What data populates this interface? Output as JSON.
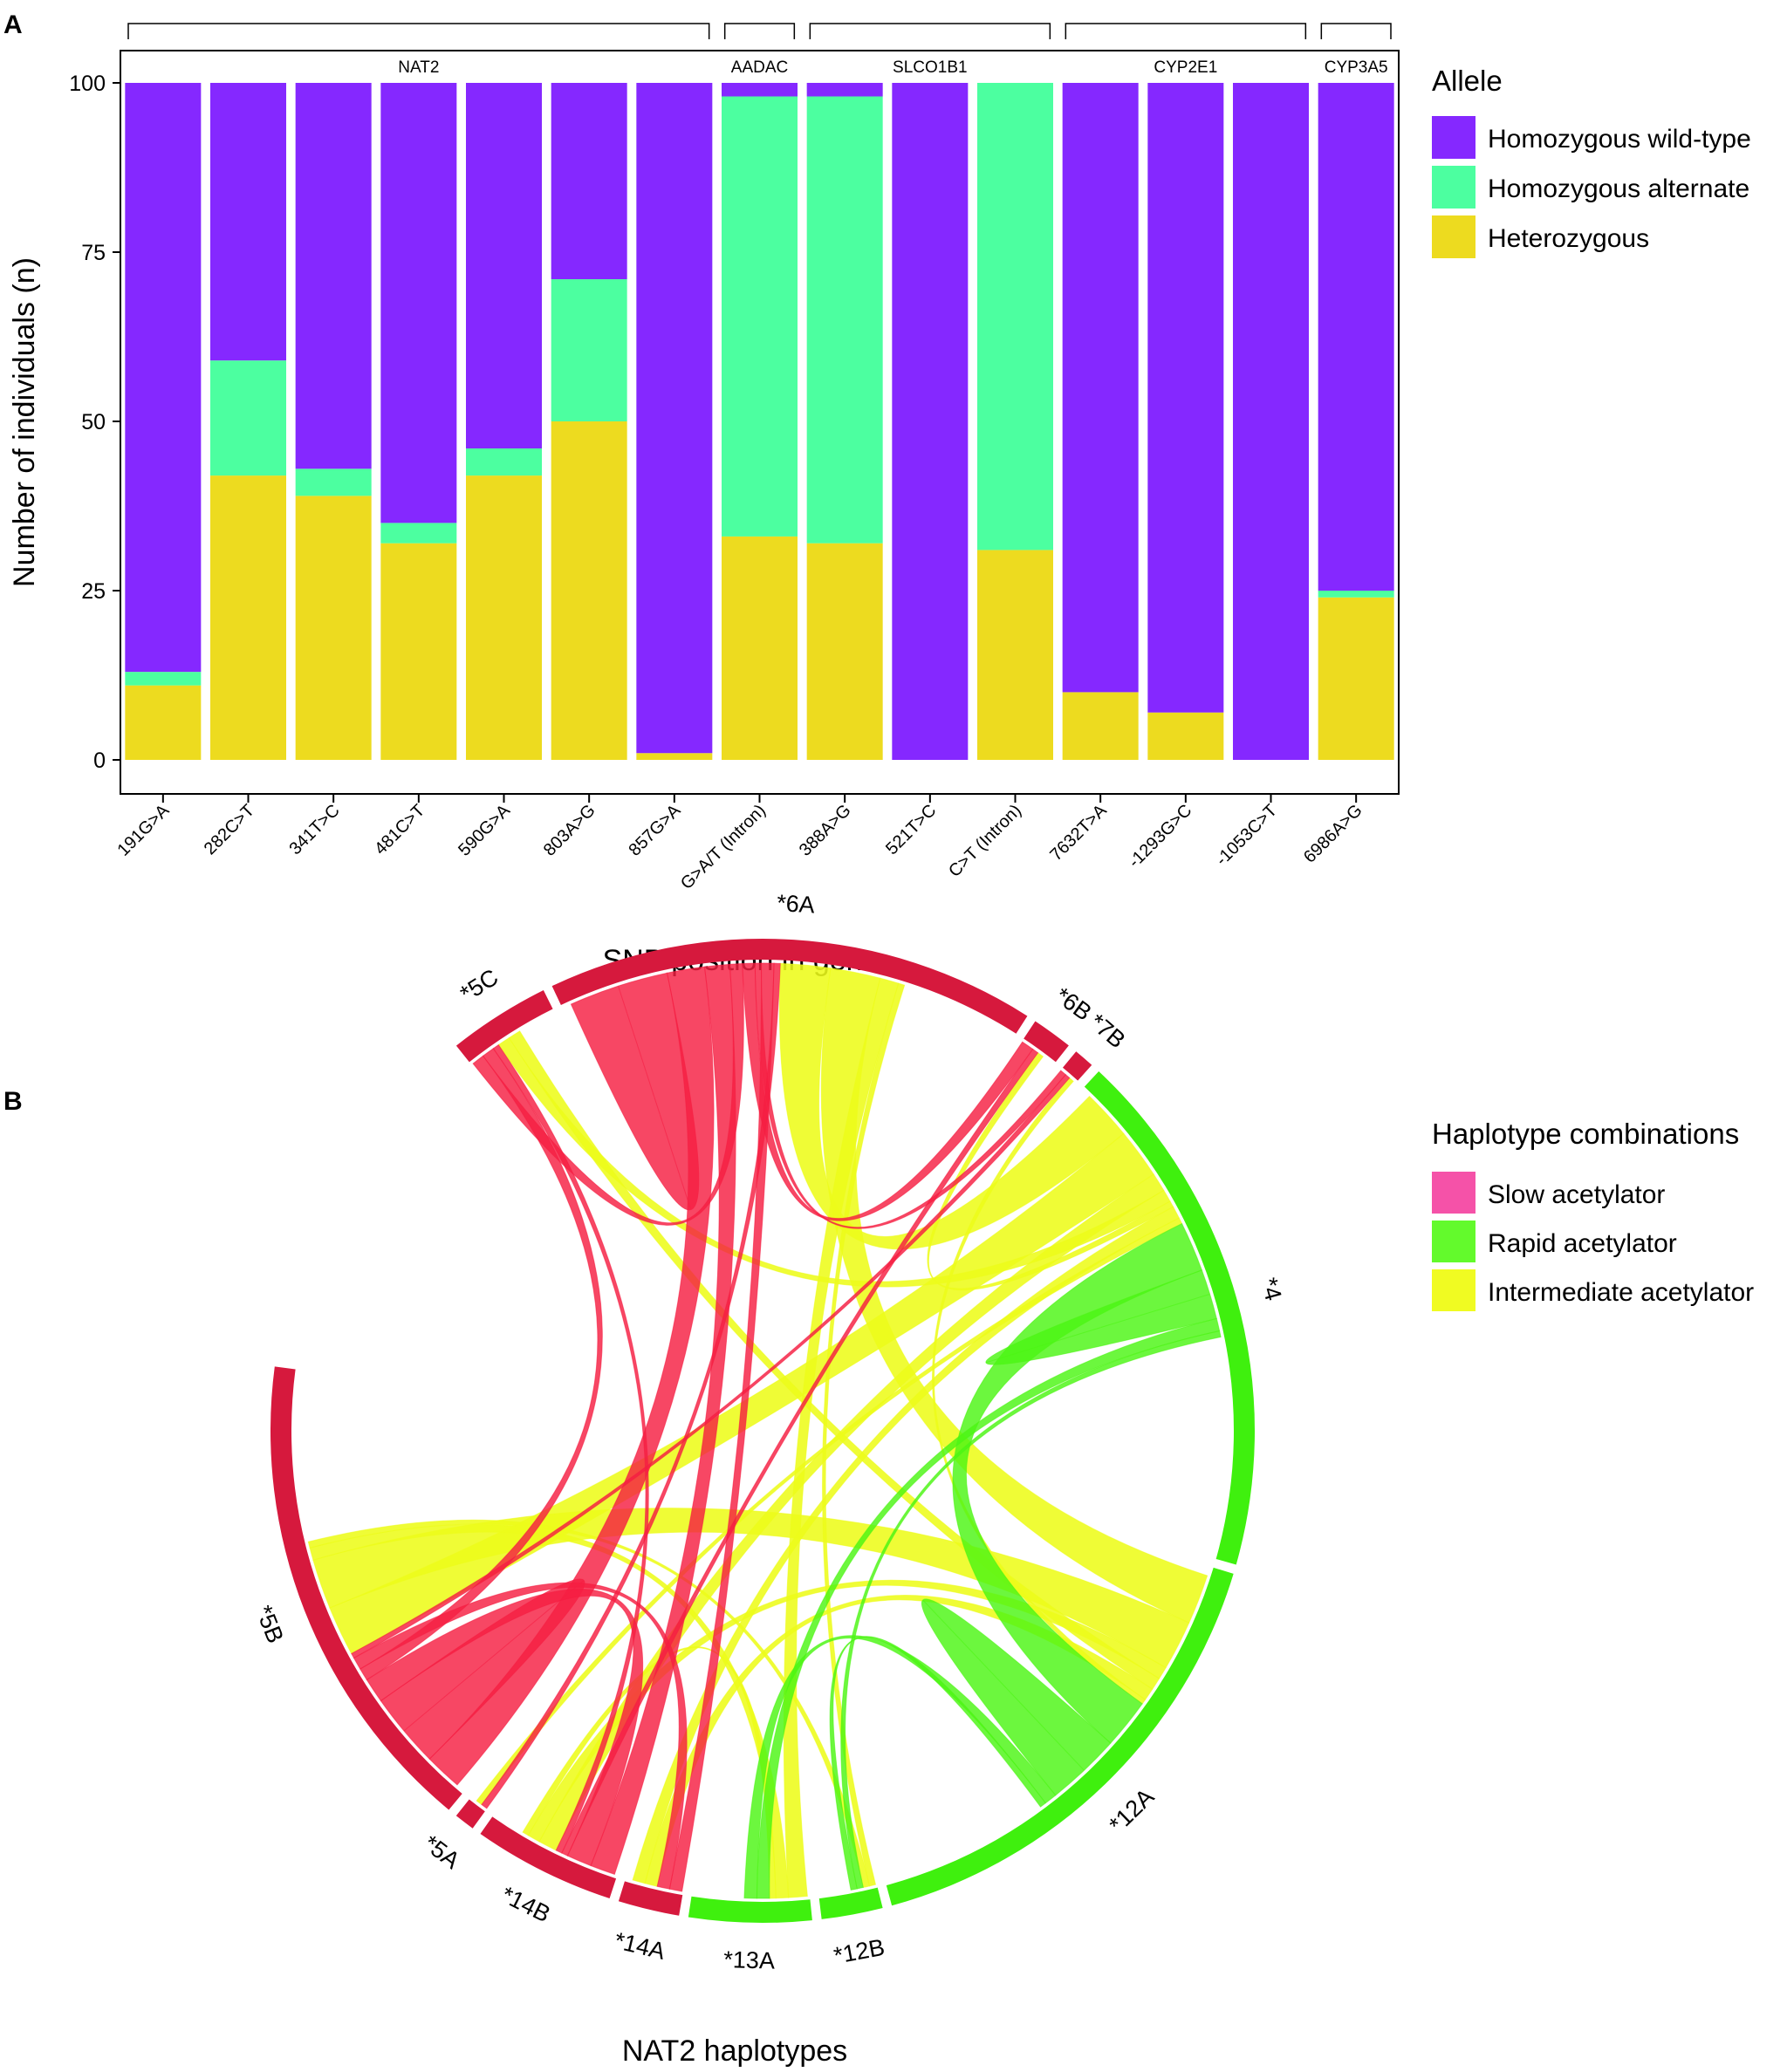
{
  "chart_data": [
    {
      "type": "bar",
      "stacked": true,
      "panel_label": "A",
      "title": "",
      "xlabel": "SNP position in gene",
      "ylabel": "Number of individuals (n)",
      "ylim": [
        0,
        100
      ],
      "yticks": [
        0,
        25,
        50,
        75,
        100
      ],
      "categories": [
        "191G>A",
        "282C>T",
        "341T>C",
        "481C>T",
        "590G>A",
        "803A>G",
        "857G>A",
        "G>A/T (Intron)",
        "388A>G",
        "521T>C",
        "C>T (Intron)",
        "7632T>A",
        "-1293G>C",
        "-1053C>T",
        "6986A>G"
      ],
      "genes": [
        {
          "name": "NAT2",
          "from": 0,
          "to": 6
        },
        {
          "name": "AADAC",
          "from": 7,
          "to": 7
        },
        {
          "name": "SLCO1B1",
          "from": 8,
          "to": 10
        },
        {
          "name": "CYP2E1",
          "from": 11,
          "to": 13
        },
        {
          "name": "CYP3A5",
          "from": 14,
          "to": 14
        }
      ],
      "legend_title": "Allele",
      "legend_position": "right",
      "series": [
        {
          "name": "Heterozygous",
          "color": "#EDDB1F",
          "values": [
            11,
            42,
            39,
            32,
            42,
            50,
            1,
            33,
            32,
            0,
            31,
            10,
            7,
            0,
            24
          ]
        },
        {
          "name": "Homozygous alternate",
          "color": "#4CFFA0",
          "values": [
            2,
            17,
            4,
            3,
            4,
            21,
            0,
            65,
            66,
            0,
            69,
            0,
            0,
            0,
            1
          ]
        },
        {
          "name": "Homozygous wild-type",
          "color": "#8528FF",
          "values": [
            87,
            41,
            57,
            65,
            54,
            29,
            99,
            2,
            2,
            100,
            0,
            90,
            93,
            100,
            75
          ]
        }
      ],
      "legend_items": [
        {
          "label": "Homozygous wild-type",
          "color": "#8528FF"
        },
        {
          "label": "Homozygous alternate",
          "color": "#4CFFA0"
        },
        {
          "label": "Heterozygous",
          "color": "#EDDB1F"
        }
      ]
    },
    {
      "type": "chord",
      "panel_label": "B",
      "title": "NAT2 haplotypes",
      "legend_title": "Haplotype combinations",
      "legend_items": [
        {
          "label": "Slow acetylator",
          "color": "#F552A8"
        },
        {
          "label": "Rapid acetylator",
          "color": "#63FA2C"
        },
        {
          "label": "Intermediate acetylator",
          "color": "#F0FB22"
        }
      ],
      "colors": {
        "slow": "#F51E42",
        "rapid": "#4CF514",
        "intermediate": "#EDFC1A",
        "slow_arc": "#D6193D",
        "rapid_arc": "#3FF00E"
      },
      "sectors": [
        {
          "name": "*5C",
          "group": "slow",
          "size": 5
        },
        {
          "name": "*6A",
          "group": "slow",
          "size": 24
        },
        {
          "name": "*6B",
          "group": "slow",
          "size": 2
        },
        {
          "name": "*7B",
          "group": "slow",
          "size": 1
        },
        {
          "name": "*4",
          "group": "rapid",
          "size": 26
        },
        {
          "name": "*12A",
          "group": "rapid",
          "size": 24
        },
        {
          "name": "*12B",
          "group": "rapid",
          "size": 3
        },
        {
          "name": "*13A",
          "group": "rapid",
          "size": 6
        },
        {
          "name": "*14A",
          "group": "slow",
          "size": 3
        },
        {
          "name": "*14B",
          "group": "slow",
          "size": 7
        },
        {
          "name": "*5A",
          "group": "slow",
          "size": 1
        },
        {
          "name": "*5B",
          "group": "slow",
          "size": 24
        }
      ],
      "links": [
        {
          "a": "*6A",
          "b": "*6A",
          "w": 4,
          "type": "slow"
        },
        {
          "a": "*6A",
          "b": "*5B",
          "w": 3,
          "type": "slow"
        },
        {
          "a": "*5B",
          "b": "*5B",
          "w": 3,
          "type": "slow"
        },
        {
          "a": "*6A",
          "b": "*14B",
          "w": 2,
          "type": "slow"
        },
        {
          "a": "*5B",
          "b": "*14B",
          "w": 2,
          "type": "slow"
        },
        {
          "a": "*5C",
          "b": "*6A",
          "w": 1,
          "type": "slow"
        },
        {
          "a": "*5C",
          "b": "*5B",
          "w": 1,
          "type": "slow"
        },
        {
          "a": "*6A",
          "b": "*6B",
          "w": 1,
          "type": "slow"
        },
        {
          "a": "*6A",
          "b": "*7B",
          "w": 0.5,
          "type": "slow"
        },
        {
          "a": "*6A",
          "b": "*14A",
          "w": 1,
          "type": "slow"
        },
        {
          "a": "*5B",
          "b": "*14A",
          "w": 1,
          "type": "slow"
        },
        {
          "a": "*5A",
          "b": "*6A",
          "w": 0.5,
          "type": "slow"
        },
        {
          "a": "*6B",
          "b": "*14B",
          "w": 0.5,
          "type": "slow"
        },
        {
          "a": "*5C",
          "b": "*14B",
          "w": 0.5,
          "type": "slow"
        },
        {
          "a": "*5B",
          "b": "*7B",
          "w": 0.4,
          "type": "slow"
        },
        {
          "a": "*6A",
          "b": "*4",
          "w": 4,
          "type": "intermediate"
        },
        {
          "a": "*6A",
          "b": "*12A",
          "w": 4,
          "type": "intermediate"
        },
        {
          "a": "*5B",
          "b": "*4",
          "w": 4,
          "type": "intermediate"
        },
        {
          "a": "*5B",
          "b": "*12A",
          "w": 4,
          "type": "intermediate"
        },
        {
          "a": "*14B",
          "b": "*4",
          "w": 1.5,
          "type": "intermediate"
        },
        {
          "a": "*14B",
          "b": "*12A",
          "w": 1,
          "type": "intermediate"
        },
        {
          "a": "*5C",
          "b": "*4",
          "w": 1,
          "type": "intermediate"
        },
        {
          "a": "*5C",
          "b": "*12A",
          "w": 1,
          "type": "intermediate"
        },
        {
          "a": "*6A",
          "b": "*13A",
          "w": 1.5,
          "type": "intermediate"
        },
        {
          "a": "*5B",
          "b": "*13A",
          "w": 1,
          "type": "intermediate"
        },
        {
          "a": "*6B",
          "b": "*4",
          "w": 0.5,
          "type": "intermediate"
        },
        {
          "a": "*14A",
          "b": "*12A",
          "w": 1,
          "type": "intermediate"
        },
        {
          "a": "*14A",
          "b": "*4",
          "w": 1,
          "type": "intermediate"
        },
        {
          "a": "*5A",
          "b": "*4",
          "w": 0.5,
          "type": "intermediate"
        },
        {
          "a": "*6A",
          "b": "*12B",
          "w": 0.5,
          "type": "intermediate"
        },
        {
          "a": "*5B",
          "b": "*12B",
          "w": 0.5,
          "type": "intermediate"
        },
        {
          "a": "*14B",
          "b": "*13A",
          "w": 0.5,
          "type": "intermediate"
        },
        {
          "a": "*7B",
          "b": "*12A",
          "w": 0.4,
          "type": "intermediate"
        },
        {
          "a": "*4",
          "b": "*12A",
          "w": 4,
          "type": "rapid"
        },
        {
          "a": "*12A",
          "b": "*12A",
          "w": 3,
          "type": "rapid"
        },
        {
          "a": "*4",
          "b": "*4",
          "w": 2,
          "type": "rapid"
        },
        {
          "a": "*4",
          "b": "*13A",
          "w": 1,
          "type": "rapid"
        },
        {
          "a": "*12A",
          "b": "*13A",
          "w": 1,
          "type": "rapid"
        },
        {
          "a": "*12B",
          "b": "*4",
          "w": 0.5,
          "type": "rapid"
        },
        {
          "a": "*12B",
          "b": "*12A",
          "w": 0.5,
          "type": "rapid"
        }
      ]
    }
  ]
}
